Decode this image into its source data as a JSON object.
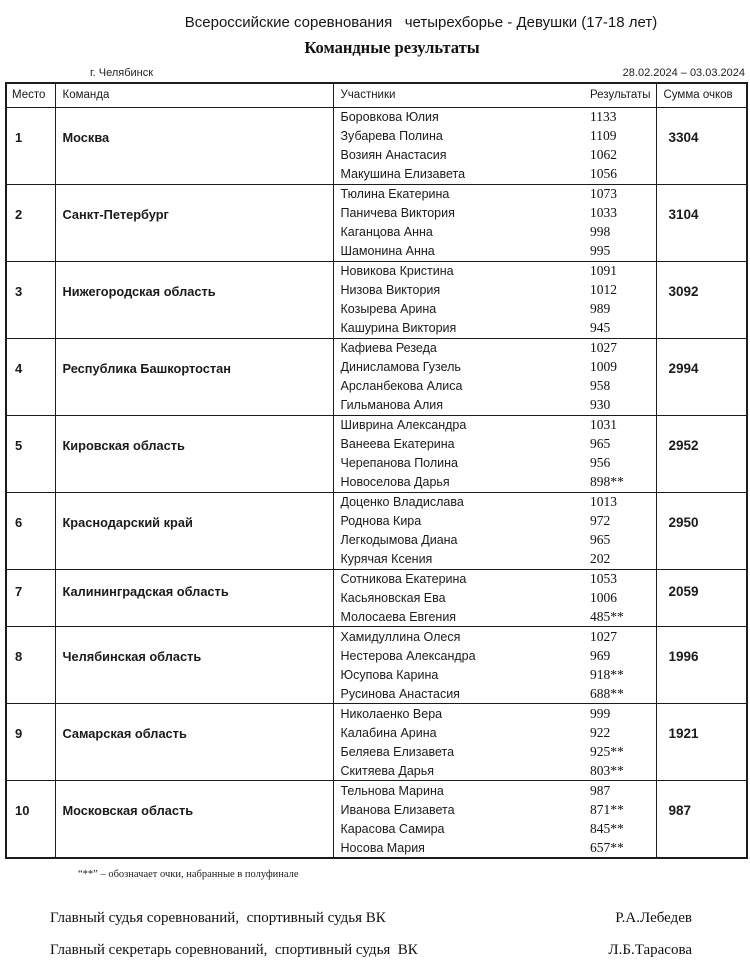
{
  "header": {
    "title": "Всероссийские соревнования   четырехборье - Девушки (17-18 лет)",
    "subtitle": "Командные результаты",
    "venue": "г. Челябинск",
    "date_range": "28.02.2024 – 03.03.2024"
  },
  "table": {
    "columns": {
      "place": "Место",
      "team": "Команда",
      "participants": "Участники",
      "results": "Результаты",
      "sum": "Сумма очков"
    },
    "rows": [
      {
        "place": "1",
        "team": "Москва",
        "sum": "3304",
        "members": [
          {
            "name": "Боровкова Юлия",
            "score": "1133"
          },
          {
            "name": "Зубарева Полина",
            "score": "1109"
          },
          {
            "name": "Возиян Анастасия",
            "score": "1062"
          },
          {
            "name": "Макушина Елизавета",
            "score": "1056"
          }
        ]
      },
      {
        "place": "2",
        "team": "Санкт-Петербург",
        "sum": "3104",
        "members": [
          {
            "name": "Тюлина Екатерина",
            "score": "1073"
          },
          {
            "name": "Паничева Виктория",
            "score": "1033"
          },
          {
            "name": "Каганцова Анна",
            "score": "998"
          },
          {
            "name": "Шамонина Анна",
            "score": "995"
          }
        ]
      },
      {
        "place": "3",
        "team": "Нижегородская область",
        "sum": "3092",
        "members": [
          {
            "name": "Новикова Кристина",
            "score": "1091"
          },
          {
            "name": "Низова Виктория",
            "score": "1012"
          },
          {
            "name": "Козырева Арина",
            "score": "989"
          },
          {
            "name": "Кашурина Виктория",
            "score": "945"
          }
        ]
      },
      {
        "place": "4",
        "team": "Республика Башкортостан",
        "sum": "2994",
        "members": [
          {
            "name": "Кафиева Резеда",
            "score": "1027"
          },
          {
            "name": "Динисламова Гузель",
            "score": "1009"
          },
          {
            "name": "Арсланбекова Алиса",
            "score": "958"
          },
          {
            "name": "Гильманова Алия",
            "score": "930"
          }
        ]
      },
      {
        "place": "5",
        "team": "Кировская область",
        "sum": "2952",
        "members": [
          {
            "name": "Шиврина Александра",
            "score": "1031"
          },
          {
            "name": "Ванеева Екатерина",
            "score": "965"
          },
          {
            "name": "Черепанова Полина",
            "score": "956"
          },
          {
            "name": "Новоселова Дарья",
            "score": "898**"
          }
        ]
      },
      {
        "place": "6",
        "team": "Краснодарский край",
        "sum": "2950",
        "members": [
          {
            "name": "Доценко Владислава",
            "score": "1013"
          },
          {
            "name": "Роднова Кира",
            "score": "972"
          },
          {
            "name": "Легкодымова Диана",
            "score": "965"
          },
          {
            "name": "Курячая Ксения",
            "score": "202"
          }
        ]
      },
      {
        "place": "7",
        "team": "Калининградская область",
        "sum": "2059",
        "members": [
          {
            "name": "Сотникова Екатерина",
            "score": "1053"
          },
          {
            "name": "Касьяновская Ева",
            "score": "1006"
          },
          {
            "name": "Молосаева Евгения",
            "score": "485**"
          }
        ]
      },
      {
        "place": "8",
        "team": "Челябинская область",
        "sum": "1996",
        "members": [
          {
            "name": "Хамидуллина Олеся",
            "score": "1027"
          },
          {
            "name": "Нестерова Александра",
            "score": "969"
          },
          {
            "name": "Юсупова Карина",
            "score": "918**"
          },
          {
            "name": "Русинова Анастасия",
            "score": "688**"
          }
        ]
      },
      {
        "place": "9",
        "team": "Самарская область",
        "sum": "1921",
        "members": [
          {
            "name": "Николаенко Вера",
            "score": "999"
          },
          {
            "name": "Калабина Арина",
            "score": "922"
          },
          {
            "name": "Беляева Елизавета",
            "score": "925**"
          },
          {
            "name": "Скитяева Дарья",
            "score": "803**"
          }
        ]
      },
      {
        "place": "10",
        "team": "Московская область",
        "sum": "987",
        "members": [
          {
            "name": "Тельнова Марина",
            "score": "987"
          },
          {
            "name": "Иванова Елизавета",
            "score": "871**"
          },
          {
            "name": "Карасова Самира",
            "score": "845**"
          },
          {
            "name": "Носова Мария",
            "score": "657**"
          }
        ]
      }
    ]
  },
  "footnote": "“**” – обозначает очки, набранные в полуфинале",
  "signatures": [
    {
      "label": "Главный судья соревнований,  спортивный судья ВК",
      "name": "Р.А.Лебедев"
    },
    {
      "label": "Главный секретарь соревнований,  спортивный судья  ВК",
      "name": "Л.Б.Тарасова"
    }
  ]
}
